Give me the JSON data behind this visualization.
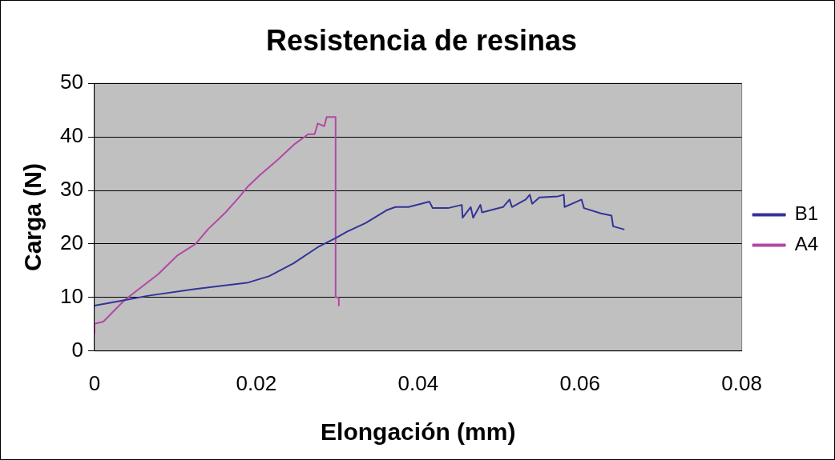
{
  "chart_data": {
    "type": "line",
    "title": "Resistencia de resinas",
    "xlabel": "Elongación (mm)",
    "ylabel": "Carga (N)",
    "xlim": [
      0,
      0.08
    ],
    "xticks": [
      0,
      0.02,
      0.04,
      0.06,
      0.08
    ],
    "ylim": [
      0,
      50
    ],
    "yticks": [
      0,
      10,
      20,
      30,
      40,
      50
    ],
    "grid": "y",
    "legend": "right",
    "marker": "none",
    "line_style": "solid",
    "series": [
      {
        "name": "B1",
        "color": "#333399",
        "x": [
          0,
          0.0037,
          0.0065,
          0.0121,
          0.019,
          0.0216,
          0.0246,
          0.0276,
          0.0298,
          0.0312,
          0.0335,
          0.0361,
          0.0372,
          0.0388,
          0.0414,
          0.0418,
          0.0437,
          0.0454,
          0.0455,
          0.0465,
          0.0468,
          0.0477,
          0.0479,
          0.0505,
          0.0513,
          0.0516,
          0.0533,
          0.0538,
          0.0541,
          0.055,
          0.0573,
          0.058,
          0.0581,
          0.0602,
          0.0605,
          0.0626,
          0.0639,
          0.0641,
          0.0655
        ],
        "values": [
          8.5,
          9.5,
          10.3,
          11.5,
          12.8,
          14,
          16.4,
          19.4,
          21.1,
          22.3,
          23.9,
          26.3,
          26.9,
          26.9,
          27.9,
          26.7,
          26.7,
          27.3,
          24.9,
          26.9,
          24.9,
          27.3,
          25.9,
          26.9,
          28.3,
          26.9,
          28.3,
          29.2,
          27.5,
          28.7,
          28.9,
          29.2,
          26.9,
          28.3,
          26.7,
          25.7,
          25.3,
          23.3,
          22.7
        ]
      },
      {
        "name": "A4",
        "color": "#b347a6",
        "x": [
          0,
          0,
          0.0011,
          0.0037,
          0.0079,
          0.0102,
          0.0125,
          0.014,
          0.0162,
          0.0178,
          0.019,
          0.0204,
          0.0227,
          0.0246,
          0.0264,
          0.0272,
          0.0276,
          0.0284,
          0.0287,
          0.0298,
          0.0298,
          0.0302,
          0.0302
        ],
        "values": [
          3.2,
          5.1,
          5.5,
          9.5,
          14.4,
          17.8,
          20,
          22.7,
          25.9,
          28.6,
          30.8,
          32.8,
          35.8,
          38.5,
          40.5,
          40.5,
          42.5,
          42,
          43.7,
          43.7,
          10.1,
          9.9,
          8.5
        ]
      }
    ]
  }
}
